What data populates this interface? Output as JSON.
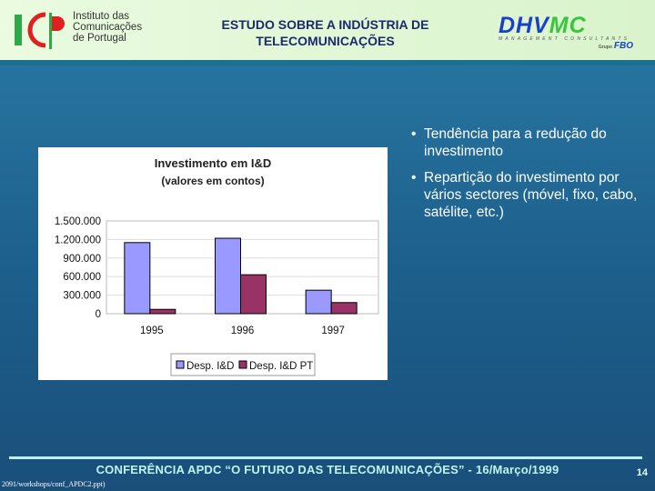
{
  "header": {
    "logo_left_text": [
      "Instituto das",
      "Comunicações",
      "de Portugal"
    ],
    "title_line1": "ESTUDO SOBRE A INDÚSTRIA DE",
    "title_line2": "TELECOMUNICAÇÕES",
    "logo_right": {
      "main_a": "DHV",
      "main_b": "MC",
      "sub": "MANAGEMENT CONSULTANTS",
      "group": "Grupo",
      "fbo": "FBO"
    }
  },
  "bullets": [
    "Tendência para a redução do investimento",
    "Repartição do investimento por vários sectores (móvel, fixo, cabo, satélite, etc.)"
  ],
  "chart_data": {
    "type": "bar",
    "title": "Investimento em I&D",
    "subtitle": "(valores em contos)",
    "categories": [
      "1995",
      "1996",
      "1997"
    ],
    "series": [
      {
        "name": "Desp. I&D",
        "color": "#9999ff",
        "values": [
          1150000,
          1220000,
          380000
        ]
      },
      {
        "name": "Desp. I&D PT",
        "color": "#993366",
        "values": [
          70000,
          630000,
          180000
        ]
      }
    ],
    "ylim": [
      0,
      1500000
    ],
    "yticks": [
      "0",
      "300.000",
      "600.000",
      "900.000",
      "1.200.000",
      "1.500.000"
    ],
    "ytick_values": [
      0,
      300000,
      600000,
      900000,
      1200000,
      1500000
    ],
    "grid": true,
    "legend": "bottom"
  },
  "footer": {
    "text": "CONFERÊNCIA APDC “O FUTURO DAS TELECOMUNICAÇÕES” - 16/Março/1999",
    "page": "14",
    "path": "2091/workshops/conf_APDC2.ppt)"
  }
}
